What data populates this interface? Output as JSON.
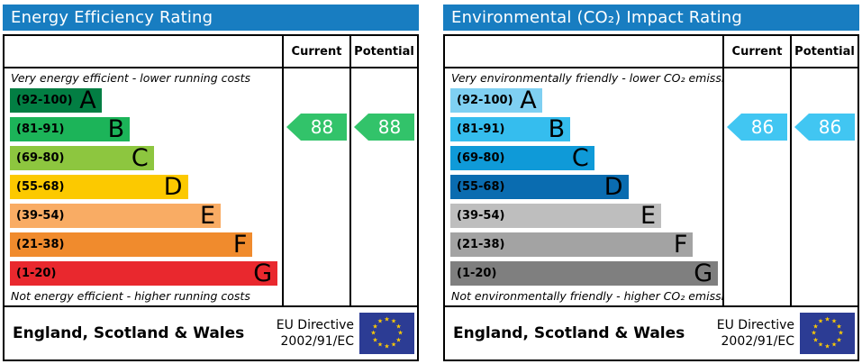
{
  "chart_data": [
    {
      "type": "bar",
      "title": "Energy Efficiency Rating",
      "categories": [
        "A",
        "B",
        "C",
        "D",
        "E",
        "F",
        "G"
      ],
      "band_ranges": [
        "92-100",
        "81-91",
        "69-80",
        "55-68",
        "39-54",
        "21-38",
        "1-20"
      ],
      "band_lengths_pct": [
        33.7,
        44.1,
        52.9,
        65.4,
        77.5,
        89.2,
        98.4
      ],
      "current_rating": 88,
      "current_band": "B",
      "potential_rating": 88,
      "potential_band": "B",
      "top_caption": "Very energy efficient - lower running costs",
      "bottom_caption": "Not energy efficient - higher running costs",
      "region": "England, Scotland & Wales",
      "directive": "EU Directive 2002/91/EC"
    },
    {
      "type": "bar",
      "title": "Environmental (CO₂) Impact Rating",
      "categories": [
        "A",
        "B",
        "C",
        "D",
        "E",
        "F",
        "G"
      ],
      "band_ranges": [
        "92-100",
        "81-91",
        "69-80",
        "55-68",
        "39-54",
        "21-38",
        "1-20"
      ],
      "band_lengths_pct": [
        33.7,
        44.1,
        52.9,
        65.4,
        77.5,
        89.2,
        98.4
      ],
      "current_rating": 86,
      "current_band": "B",
      "potential_rating": 86,
      "potential_band": "B",
      "top_caption": "Very environmentally friendly - lower CO₂ emissions",
      "bottom_caption": "Not environmentally friendly - higher CO₂ emissions",
      "region": "England, Scotland & Wales",
      "directive": "EU Directive 2002/91/EC"
    }
  ],
  "panels": [
    {
      "title": "Energy Efficiency Rating",
      "title_color": "#187dc1",
      "columns": {
        "current": "Current",
        "potential": "Potential"
      },
      "top_caption": "Very energy efficient - lower running costs",
      "bottom_caption": "Not energy efficient - higher running costs",
      "bands": [
        {
          "range": "(92-100)",
          "letter": "A",
          "color": "#027e43",
          "width_pct": 33.7
        },
        {
          "range": "(81-91)",
          "letter": "B",
          "color": "#1cb459",
          "width_pct": 44.1
        },
        {
          "range": "(69-80)",
          "letter": "C",
          "color": "#8dc63f",
          "width_pct": 52.9
        },
        {
          "range": "(55-68)",
          "letter": "D",
          "color": "#fcc900",
          "width_pct": 65.4
        },
        {
          "range": "(39-54)",
          "letter": "E",
          "color": "#f9ac64",
          "width_pct": 77.5
        },
        {
          "range": "(21-38)",
          "letter": "F",
          "color": "#f08b2d",
          "width_pct": 89.2
        },
        {
          "range": "(1-20)",
          "letter": "G",
          "color": "#e9282e",
          "width_pct": 98.4
        }
      ],
      "current": {
        "value": "88",
        "color": "#32c36a",
        "band_index": 1
      },
      "potential": {
        "value": "88",
        "color": "#32c36a",
        "band_index": 1
      },
      "footer": {
        "region": "England, Scotland & Wales",
        "directive_line1": "EU Directive",
        "directive_line2": "2002/91/EC",
        "flag_color": "#2c3c94",
        "star_color": "#ffcc00"
      }
    },
    {
      "title": "Environmental (CO₂) Impact Rating",
      "title_color": "#187dc1",
      "columns": {
        "current": "Current",
        "potential": "Potential"
      },
      "top_caption": "Very environmentally friendly - lower CO₂ emissions",
      "bottom_caption": "Not environmentally friendly - higher CO₂ emissions",
      "bands": [
        {
          "range": "(92-100)",
          "letter": "A",
          "color": "#7fd0f2",
          "width_pct": 33.7
        },
        {
          "range": "(81-91)",
          "letter": "B",
          "color": "#35bdee",
          "width_pct": 44.1
        },
        {
          "range": "(69-80)",
          "letter": "C",
          "color": "#0f9ad8",
          "width_pct": 52.9
        },
        {
          "range": "(55-68)",
          "letter": "D",
          "color": "#0a6cb0",
          "width_pct": 65.4
        },
        {
          "range": "(39-54)",
          "letter": "E",
          "color": "#bebebe",
          "width_pct": 77.5
        },
        {
          "range": "(21-38)",
          "letter": "F",
          "color": "#a3a3a3",
          "width_pct": 89.2
        },
        {
          "range": "(1-20)",
          "letter": "G",
          "color": "#7f7f7f",
          "width_pct": 98.4
        }
      ],
      "current": {
        "value": "86",
        "color": "#41c6f2",
        "band_index": 1
      },
      "potential": {
        "value": "86",
        "color": "#41c6f2",
        "band_index": 1
      },
      "footer": {
        "region": "England, Scotland & Wales",
        "directive_line1": "EU Directive",
        "directive_line2": "2002/91/EC",
        "flag_color": "#2c3c94",
        "star_color": "#ffcc00"
      }
    }
  ]
}
